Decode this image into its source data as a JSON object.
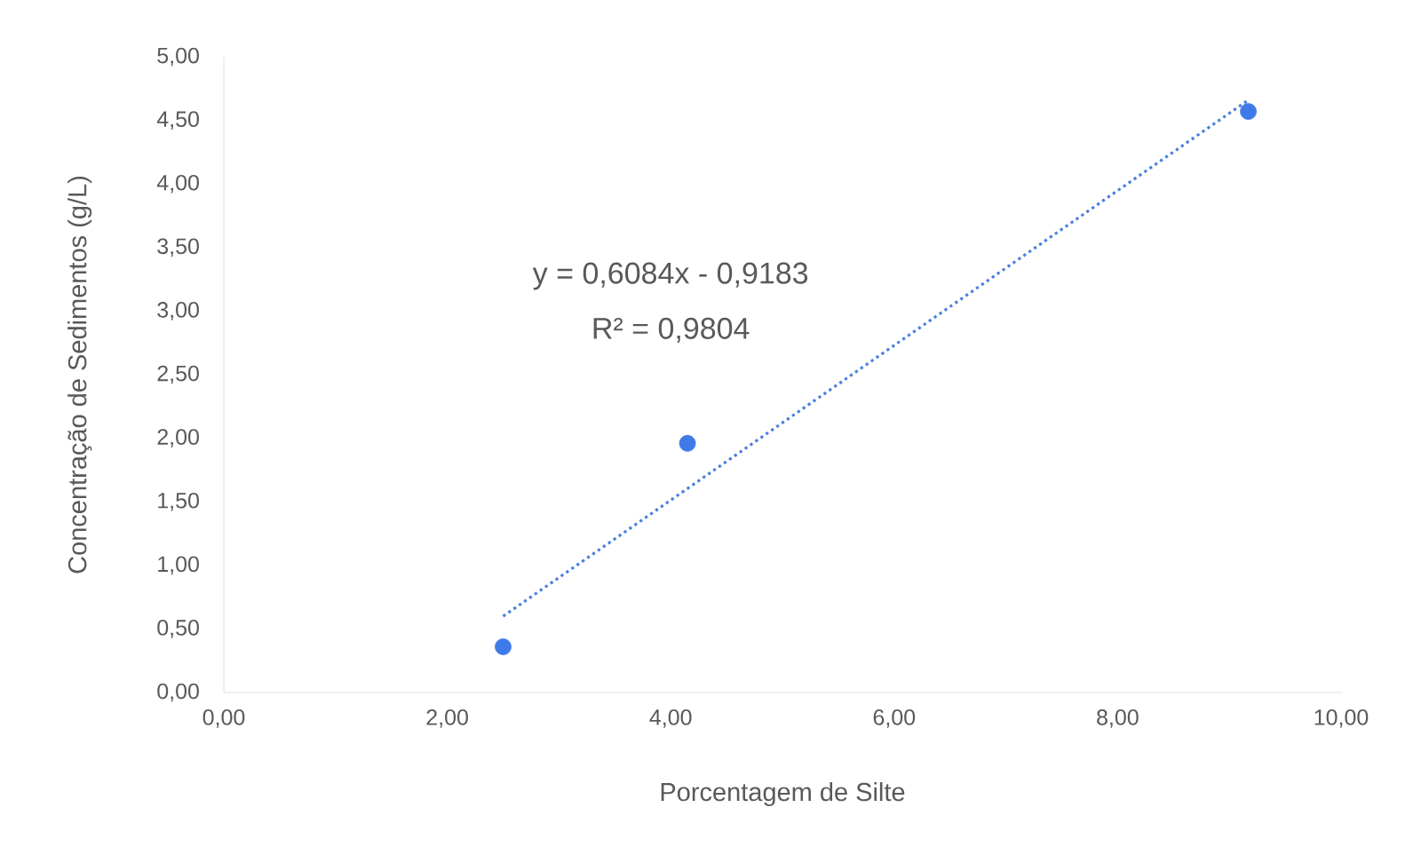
{
  "chart_data": {
    "type": "scatter",
    "xlabel": "Porcentagem de Silte",
    "ylabel": "Concentração de Sedimentos (g/L)",
    "xlim": [
      0,
      10
    ],
    "ylim": [
      0,
      5
    ],
    "xticks": [
      {
        "value": 0,
        "label": "0,00"
      },
      {
        "value": 2,
        "label": "2,00"
      },
      {
        "value": 4,
        "label": "4,00"
      },
      {
        "value": 6,
        "label": "6,00"
      },
      {
        "value": 8,
        "label": "8,00"
      },
      {
        "value": 10,
        "label": "10,00"
      }
    ],
    "yticks": [
      {
        "value": 0,
        "label": "0,00"
      },
      {
        "value": 0.5,
        "label": "0,50"
      },
      {
        "value": 1,
        "label": "1,00"
      },
      {
        "value": 1.5,
        "label": "1,50"
      },
      {
        "value": 2,
        "label": "2,00"
      },
      {
        "value": 2.5,
        "label": "2,50"
      },
      {
        "value": 3,
        "label": "3,00"
      },
      {
        "value": 3.5,
        "label": "3,50"
      },
      {
        "value": 4,
        "label": "4,00"
      },
      {
        "value": 4.5,
        "label": "4,50"
      },
      {
        "value": 5,
        "label": "5,00"
      }
    ],
    "series": [
      {
        "color": "#3f7be8",
        "marker": "circle",
        "x": [
          2.5,
          4.15,
          9.17
        ],
        "values": [
          0.36,
          1.96,
          4.57
        ]
      },
      {
        "type": "line",
        "color": "#4a7fe0",
        "marker": "none",
        "line_style": "dotted",
        "x": [
          2.5,
          9.17
        ],
        "values": [
          0.6,
          4.66
        ]
      }
    ],
    "annotations": [
      "y = 0,6084x - 0,9183",
      "R² = 0,9804"
    ]
  }
}
